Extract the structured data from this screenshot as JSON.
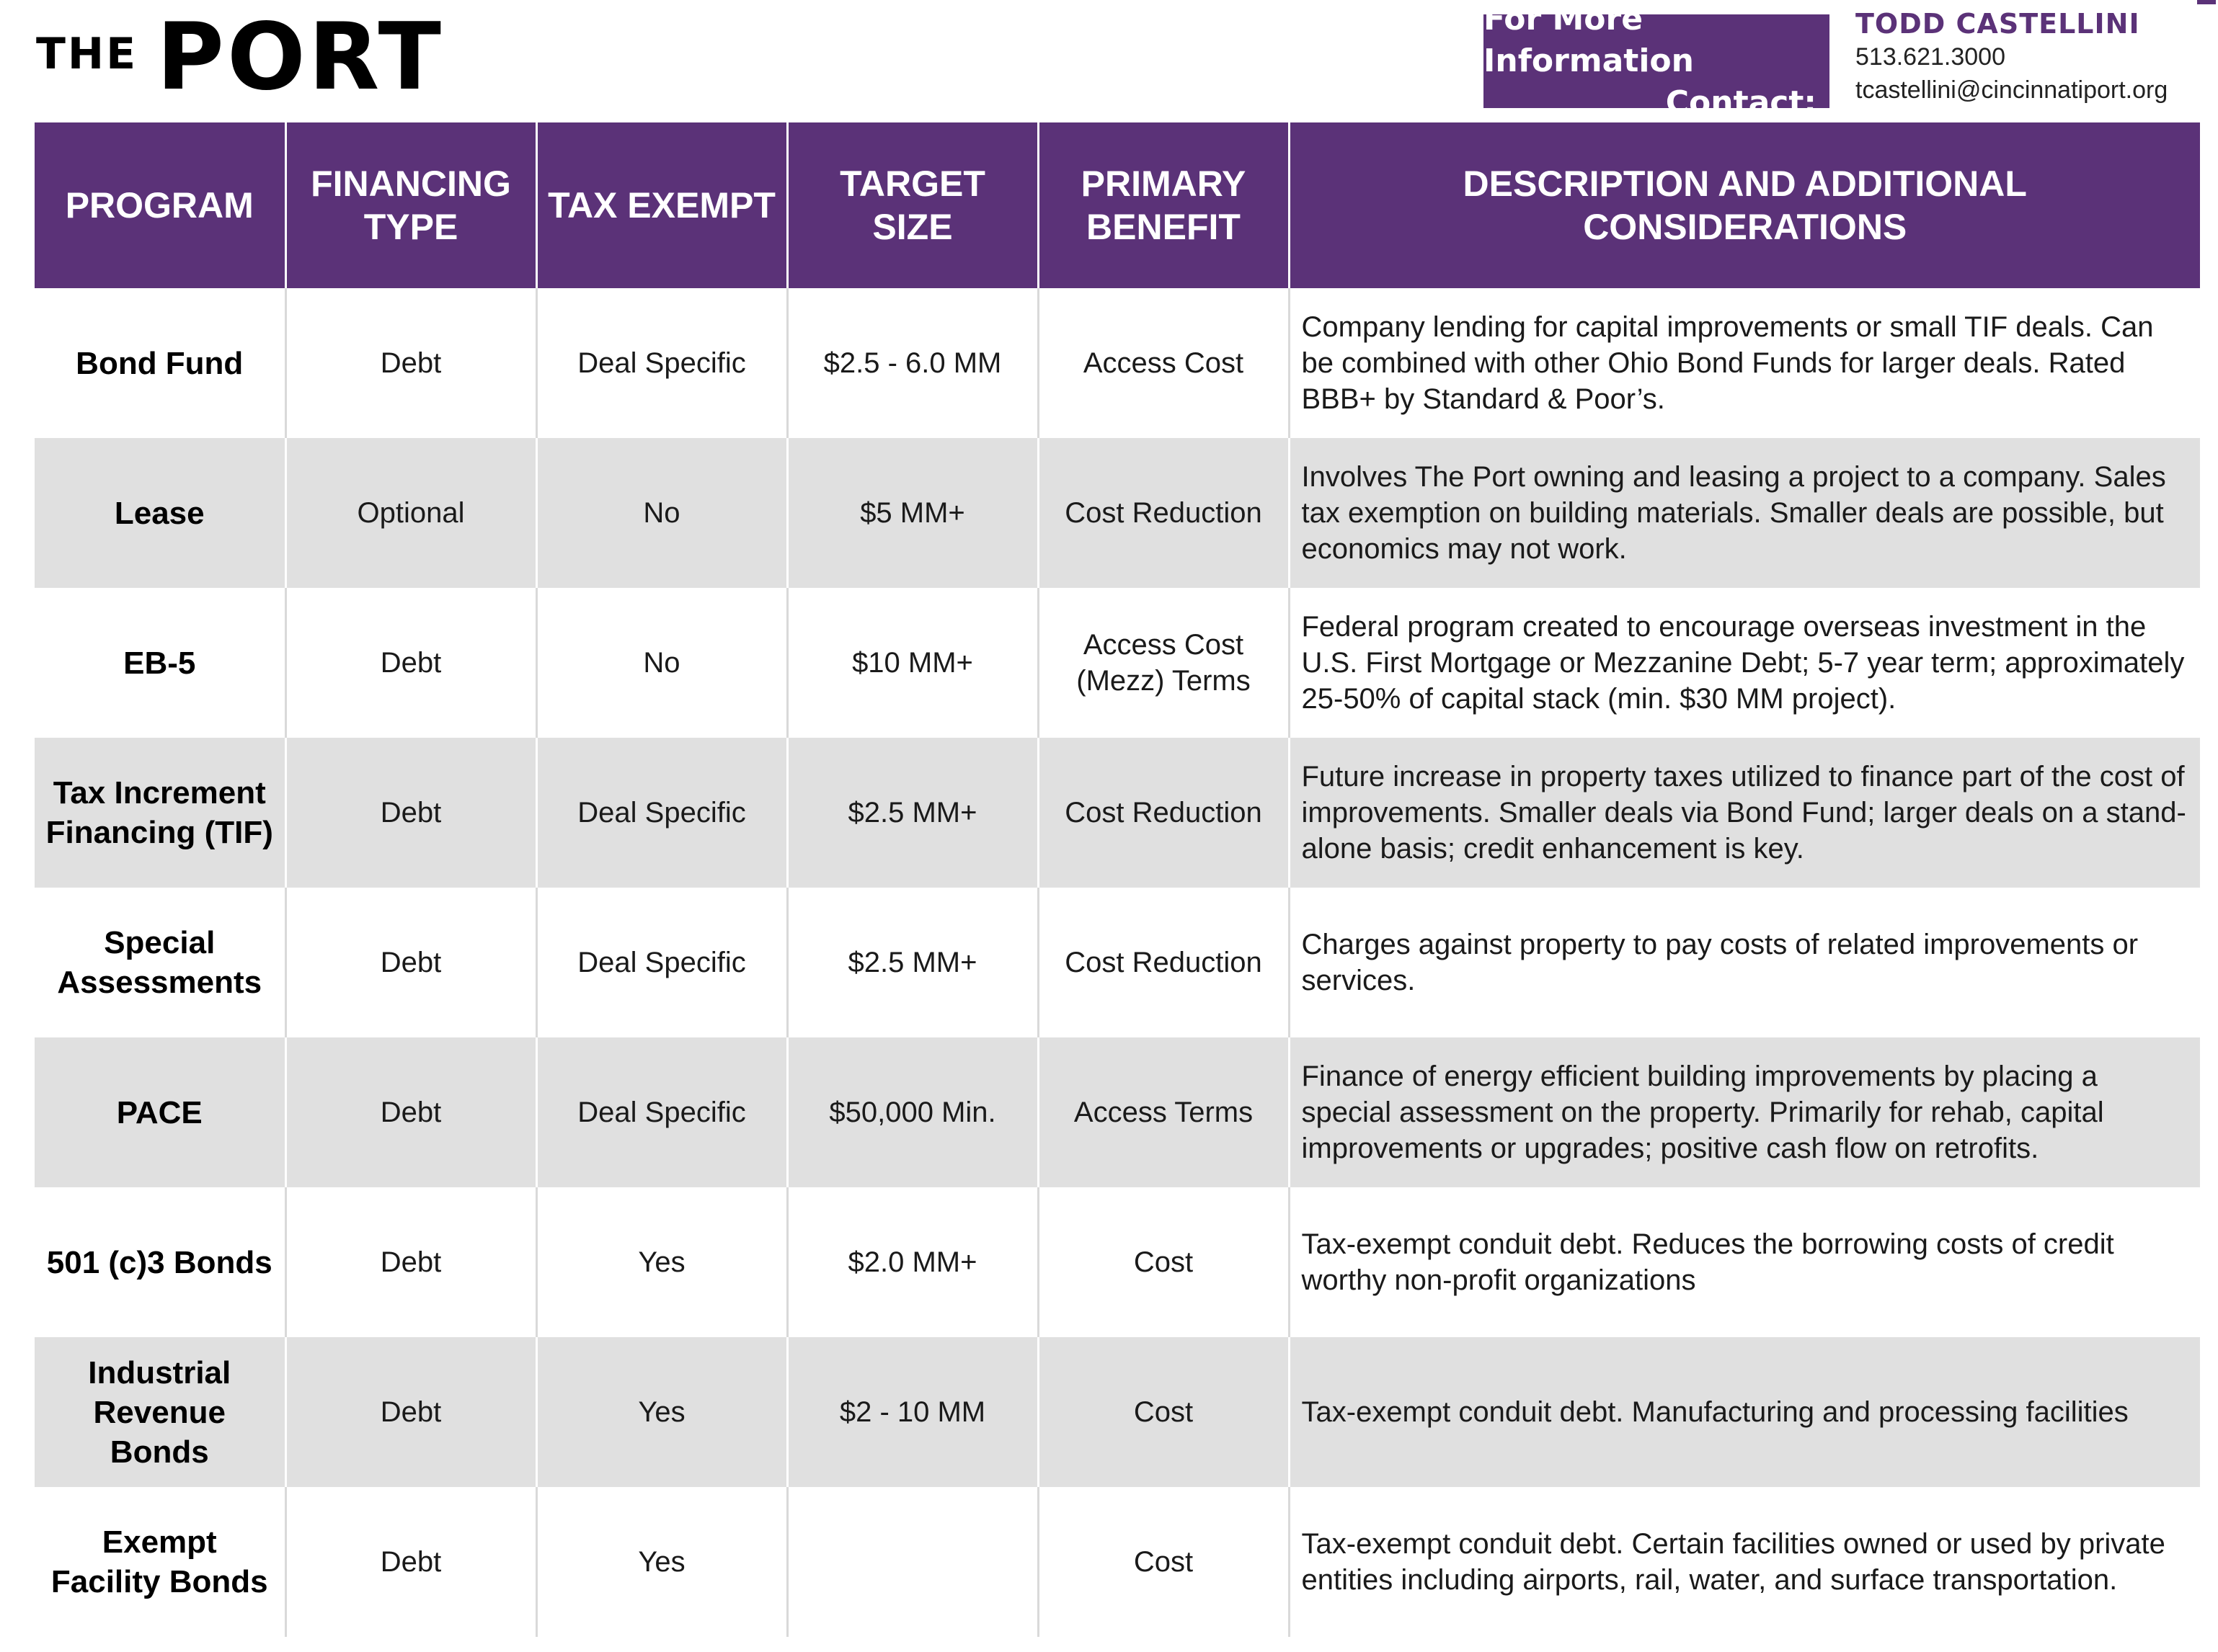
{
  "logo": {
    "the": "THE",
    "port": "PORT"
  },
  "contact": {
    "label_line1": "For More Information",
    "label_line2": "Contact:",
    "name": "TODD CASTELLINI",
    "phone": "513.621.3000",
    "email": "tcastellini@cincinnatiport.org"
  },
  "table": {
    "headers": [
      "PROGRAM",
      "FINANCING TYPE",
      "TAX EXEMPT",
      "TARGET SIZE",
      "PRIMARY BENEFIT",
      "DESCRIPTION AND ADDITIONAL CONSIDERATIONS"
    ],
    "rows": [
      {
        "program": "Bond Fund",
        "financing": "Debt",
        "tax_exempt": "Deal Specific",
        "target": "$2.5 - 6.0 MM",
        "benefit": "Access Cost",
        "description": "Company lending for capital improvements or small TIF deals. Can be combined with other Ohio Bond Funds for larger deals. Rated BBB+ by Standard & Poor’s."
      },
      {
        "program": "Lease",
        "financing": "Optional",
        "tax_exempt": "No",
        "target": "$5 MM+",
        "benefit": "Cost Reduction",
        "description": "Involves The Port owning and leasing a project to a company. Sales tax exemption on building materials. Smaller deals are possible, but economics may not work."
      },
      {
        "program": "EB-5",
        "financing": "Debt",
        "tax_exempt": "No",
        "target": "$10 MM+",
        "benefit": "Access Cost (Mezz) Terms",
        "description": "Federal program created to encourage overseas investment in the U.S. First Mortgage or Mezzanine Debt; 5-7 year term; approximately 25-50% of capital stack (min. $30 MM project)."
      },
      {
        "program": "Tax Increment Financing (TIF)",
        "financing": "Debt",
        "tax_exempt": "Deal Specific",
        "target": "$2.5 MM+",
        "benefit": "Cost Reduction",
        "description": "Future increase in property taxes utilized to finance part of the cost of improvements. Smaller deals via Bond Fund; larger deals on a stand-alone basis; credit enhancement is key."
      },
      {
        "program": "Special Assessments",
        "financing": "Debt",
        "tax_exempt": "Deal Specific",
        "target": "$2.5 MM+",
        "benefit": "Cost Reduction",
        "description": "Charges against property to pay costs of related improvements or services."
      },
      {
        "program": "PACE",
        "financing": "Debt",
        "tax_exempt": "Deal Specific",
        "target": "$50,000 Min.",
        "benefit": "Access Terms",
        "description": "Finance of energy efficient building improvements by placing a special assessment on the property. Primarily for rehab, capital improvements or upgrades; positive cash flow on retrofits."
      },
      {
        "program": "501 (c)3 Bonds",
        "financing": "Debt",
        "tax_exempt": "Yes",
        "target": "$2.0 MM+",
        "benefit": "Cost",
        "description": "Tax-exempt conduit debt. Reduces the borrowing costs of credit worthy non-profit organizations"
      },
      {
        "program": "Industrial Revenue Bonds",
        "financing": "Debt",
        "tax_exempt": "Yes",
        "target": "$2 - 10 MM",
        "benefit": "Cost",
        "description": "Tax-exempt conduit debt. Manufacturing and processing facilities"
      },
      {
        "program": "Exempt Facility Bonds",
        "financing": "Debt",
        "tax_exempt": "Yes",
        "target": "",
        "benefit": "Cost",
        "description": "Tax-exempt conduit debt. Certain facilities owned or used by private entities including airports, rail, water, and surface transportation."
      }
    ]
  }
}
